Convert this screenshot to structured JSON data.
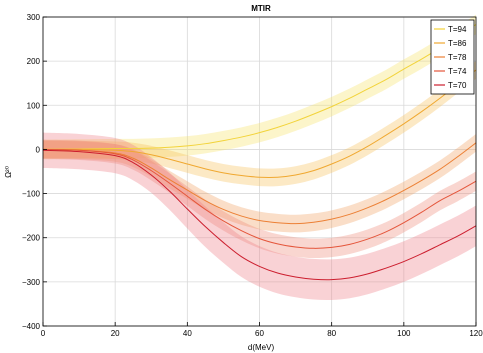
{
  "chart_data": {
    "type": "line",
    "title": "MTIR",
    "xlabel": "d(MeV)",
    "ylabel": "Ω²⁰",
    "xlim": [
      0,
      120
    ],
    "ylim": [
      -400,
      300
    ],
    "xticks": [
      0,
      20,
      40,
      60,
      80,
      100,
      120
    ],
    "yticks": [
      -400,
      -300,
      -200,
      -100,
      0,
      100,
      200,
      300
    ],
    "grid": true,
    "legend_position": "top-right",
    "band_opacity": 0.35,
    "series": [
      {
        "name": "T=94",
        "color": "#f2d33a",
        "band_color": "#f7e268",
        "x": [
          0,
          10,
          20,
          25,
          30,
          35,
          40,
          45,
          50,
          55,
          60,
          65,
          70,
          75,
          80,
          85,
          90,
          95,
          100,
          105,
          110,
          115,
          120
        ],
        "y": [
          0,
          1,
          2,
          2,
          3,
          5,
          8,
          13,
          20,
          28,
          38,
          50,
          64,
          80,
          97,
          116,
          137,
          158,
          182,
          205,
          230,
          257,
          283
        ],
        "err": [
          22,
          22,
          22,
          22,
          22,
          22,
          22,
          22,
          22,
          22,
          22,
          22,
          22,
          22,
          22,
          22,
          22,
          22,
          22,
          22,
          22,
          22,
          22
        ]
      },
      {
        "name": "T=86",
        "color": "#f0a830",
        "band_color": "#f6c05a",
        "x": [
          0,
          10,
          20,
          25,
          30,
          35,
          40,
          45,
          50,
          55,
          60,
          65,
          70,
          75,
          80,
          85,
          90,
          95,
          100,
          105,
          110,
          115,
          120
        ],
        "y": [
          0,
          0,
          -2,
          -5,
          -12,
          -22,
          -33,
          -44,
          -53,
          -59,
          -63,
          -63,
          -58,
          -48,
          -33,
          -15,
          7,
          32,
          58,
          86,
          116,
          148,
          180
        ],
        "err": [
          20,
          20,
          20,
          20,
          20,
          20,
          20,
          20,
          20,
          20,
          20,
          20,
          20,
          20,
          20,
          20,
          20,
          20,
          20,
          20,
          20,
          20,
          20
        ]
      },
      {
        "name": "T=78",
        "color": "#ec8035",
        "band_color": "#f2a062",
        "x": [
          0,
          10,
          20,
          25,
          30,
          35,
          40,
          45,
          50,
          55,
          60,
          65,
          70,
          75,
          80,
          85,
          90,
          95,
          100,
          105,
          110,
          115,
          120
        ],
        "y": [
          0,
          -2,
          -8,
          -20,
          -42,
          -68,
          -92,
          -116,
          -136,
          -151,
          -161,
          -166,
          -168,
          -165,
          -158,
          -147,
          -132,
          -114,
          -93,
          -70,
          -45,
          -16,
          15
        ],
        "err": [
          20,
          20,
          20,
          20,
          20,
          20,
          20,
          20,
          20,
          20,
          20,
          20,
          20,
          20,
          20,
          20,
          20,
          20,
          20,
          20,
          20,
          20,
          20
        ]
      },
      {
        "name": "T=74",
        "color": "#e4553a",
        "band_color": "#ee8a78",
        "x": [
          0,
          10,
          20,
          25,
          30,
          35,
          40,
          45,
          50,
          55,
          60,
          65,
          70,
          75,
          80,
          85,
          90,
          95,
          100,
          105,
          110,
          115,
          120
        ],
        "y": [
          0,
          -2,
          -10,
          -24,
          -48,
          -76,
          -106,
          -136,
          -162,
          -184,
          -202,
          -214,
          -221,
          -224,
          -222,
          -215,
          -203,
          -187,
          -166,
          -142,
          -116,
          -95,
          -72
        ],
        "err": [
          22,
          22,
          22,
          22,
          22,
          22,
          22,
          22,
          22,
          22,
          22,
          22,
          22,
          22,
          22,
          22,
          22,
          22,
          22,
          22,
          22,
          22,
          22
        ]
      },
      {
        "name": "T=70",
        "color": "#cc1e2e",
        "band_color": "#ee7f88",
        "x": [
          0,
          10,
          20,
          25,
          30,
          35,
          40,
          45,
          50,
          55,
          60,
          65,
          70,
          75,
          80,
          85,
          90,
          95,
          100,
          105,
          110,
          115,
          120
        ],
        "y": [
          -2,
          -5,
          -14,
          -30,
          -58,
          -94,
          -135,
          -175,
          -211,
          -243,
          -265,
          -280,
          -289,
          -294,
          -295,
          -291,
          -282,
          -269,
          -254,
          -236,
          -216,
          -196,
          -173
        ],
        "err": [
          40,
          40,
          40,
          40,
          40,
          42,
          44,
          46,
          46,
          46,
          46,
          46,
          46,
          46,
          46,
          46,
          46,
          46,
          46,
          46,
          46,
          46,
          46
        ]
      }
    ]
  }
}
